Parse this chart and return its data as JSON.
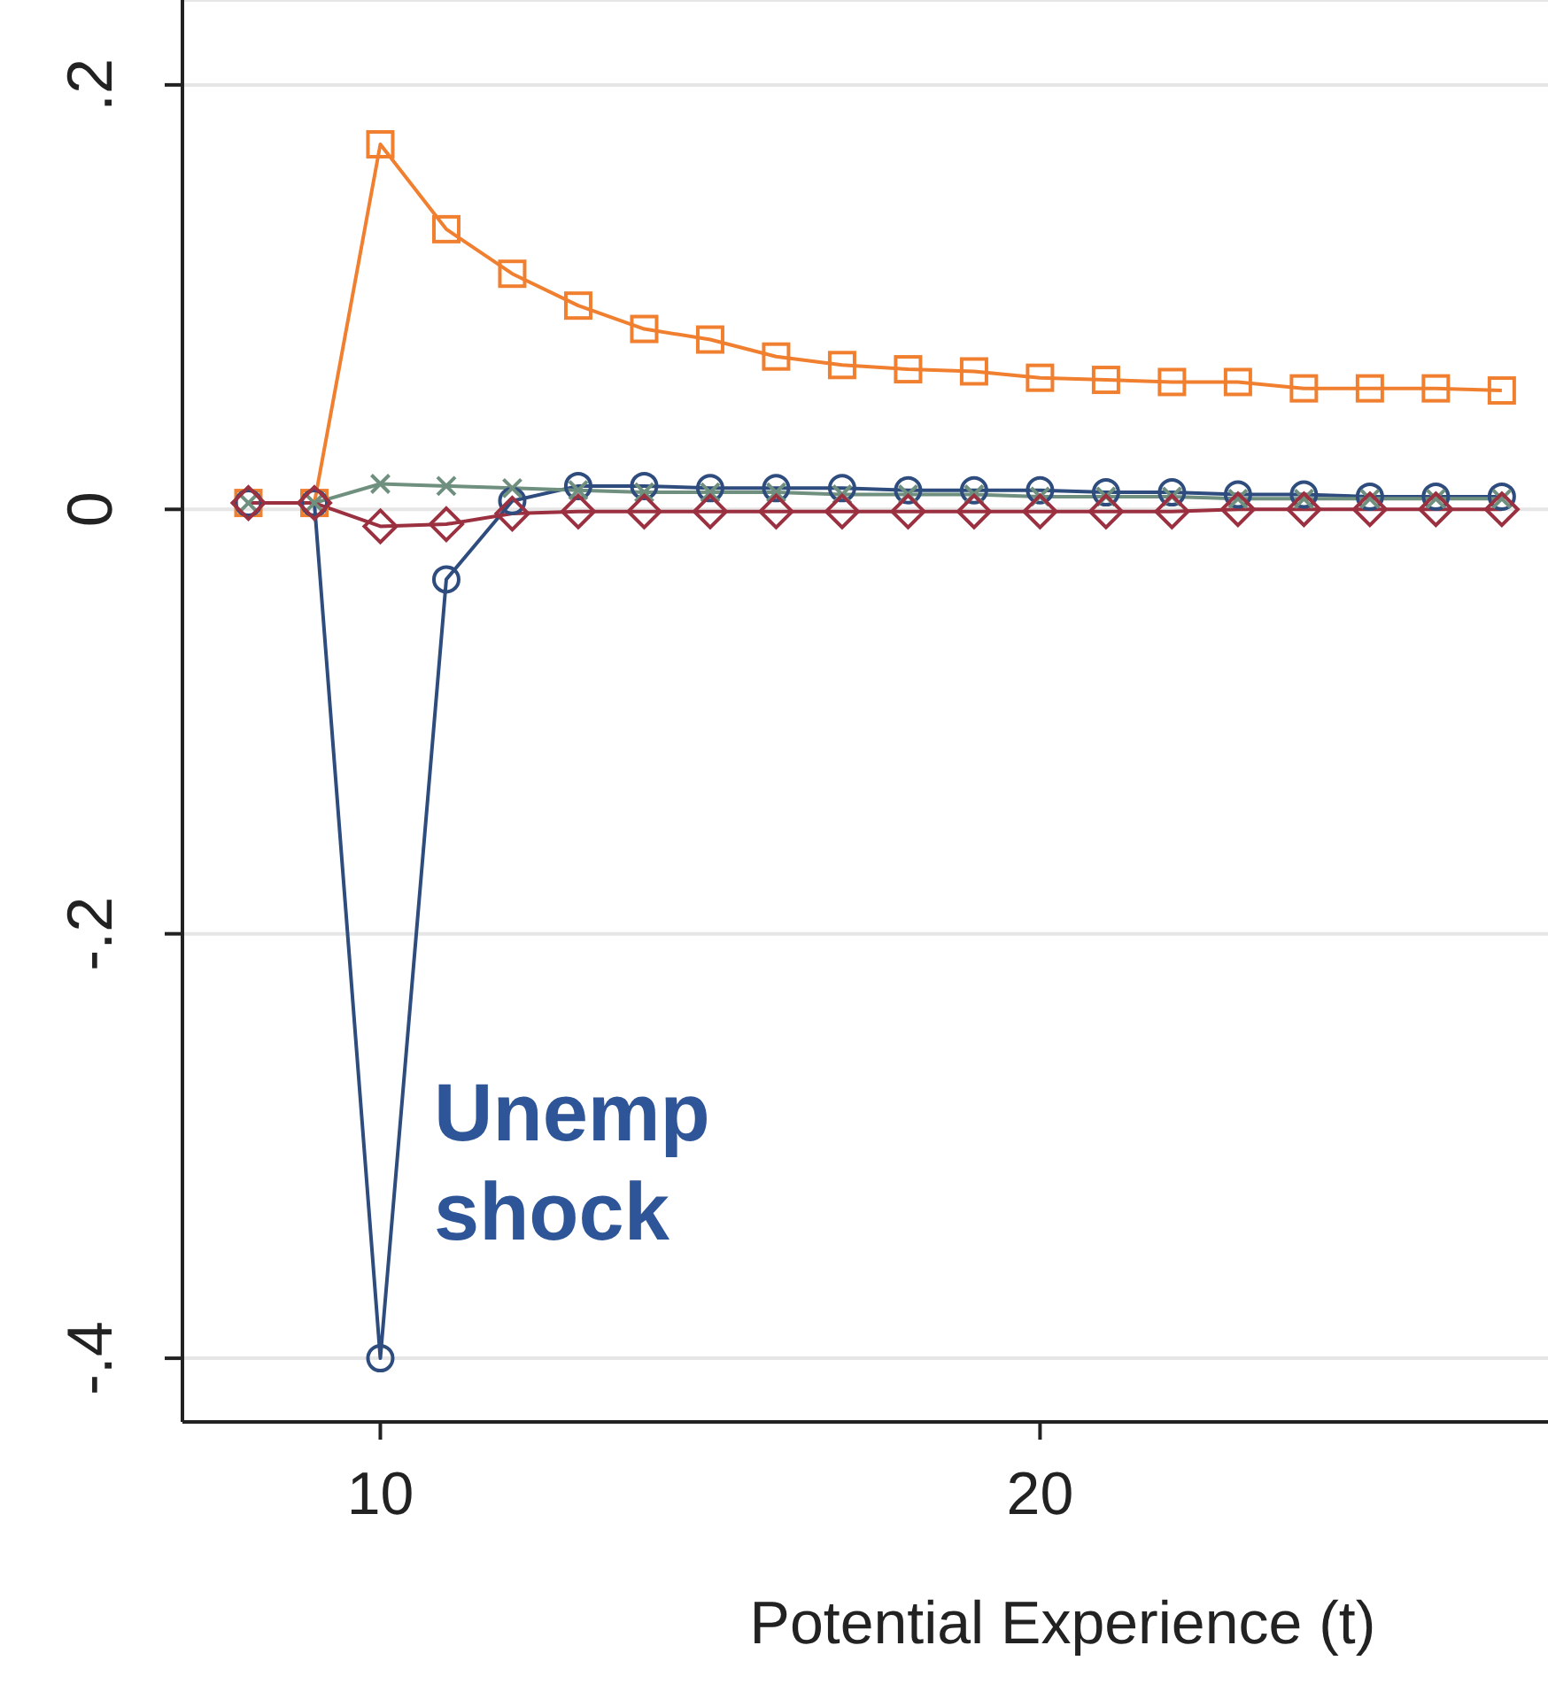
{
  "chart_data": {
    "type": "line",
    "xlabel": "Potential Experience (t)",
    "x": [
      8,
      9,
      10,
      11,
      12,
      13,
      14,
      15,
      16,
      17,
      18,
      19,
      20,
      21,
      22,
      23,
      24,
      25,
      26,
      27
    ],
    "series": [
      {
        "color": "#f07f2f",
        "marker": "square",
        "values": [
          0.003,
          0.003,
          0.172,
          0.132,
          0.111,
          0.096,
          0.085,
          0.08,
          0.072,
          0.068,
          0.066,
          0.065,
          0.062,
          0.061,
          0.06,
          0.06,
          0.057,
          0.057,
          0.057,
          0.056
        ]
      },
      {
        "color": "#2e4d7e",
        "marker": "circle",
        "values": [
          0.003,
          0.003,
          -0.4,
          -0.033,
          0.004,
          0.011,
          0.011,
          0.01,
          0.01,
          0.01,
          0.009,
          0.009,
          0.009,
          0.008,
          0.008,
          0.007,
          0.007,
          0.006,
          0.006,
          0.006
        ]
      },
      {
        "color": "#6f8f7f",
        "marker": "cross",
        "values": [
          0.003,
          0.003,
          0.012,
          0.011,
          0.01,
          0.009,
          0.008,
          0.008,
          0.008,
          0.007,
          0.007,
          0.007,
          0.006,
          0.006,
          0.006,
          0.005,
          0.005,
          0.005,
          0.005,
          0.005
        ]
      },
      {
        "color": "#9b3040",
        "marker": "diamond",
        "values": [
          0.003,
          0.003,
          -0.008,
          -0.007,
          -0.002,
          -0.001,
          -0.001,
          -0.001,
          -0.001,
          -0.001,
          -0.001,
          -0.001,
          -0.001,
          -0.001,
          -0.001,
          0,
          0,
          0,
          0,
          0
        ]
      }
    ],
    "xlim": [
      7,
      27.7
    ],
    "xticks": [
      10,
      20
    ],
    "ylim": [
      -0.43,
      0.24
    ],
    "yticks": [
      {
        "value": 0.2,
        "label": ".2"
      },
      {
        "value": 0,
        "label": "0"
      },
      {
        "value": -0.2,
        "label": "-.2"
      },
      {
        "value": -0.4,
        "label": "-.4"
      }
    ],
    "grid": "y",
    "annotations": [
      "Unemp shock"
    ]
  }
}
